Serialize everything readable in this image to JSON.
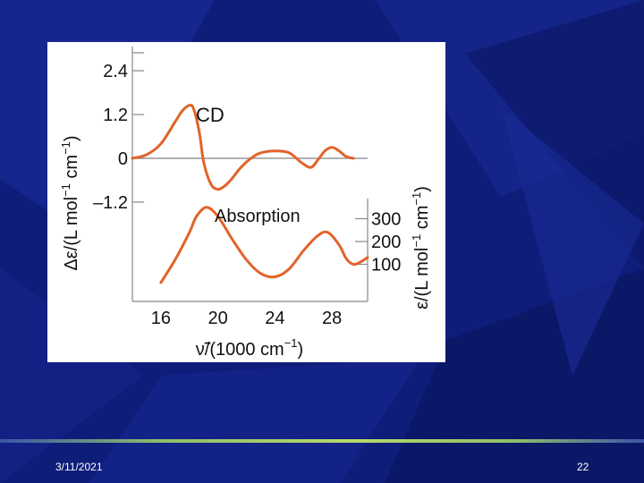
{
  "slide": {
    "date": "3/11/2021",
    "page_number": "22",
    "background_color": "#0f1d7a",
    "accent_line_color": "#b8d96a"
  },
  "chart_data": {
    "type": "line",
    "curve_color": "#e2632a",
    "baseline_color": "#999999",
    "x_tick_labels": [
      "16",
      "20",
      "24",
      "28"
    ],
    "x_ticks": [
      16,
      20,
      24,
      28
    ],
    "xlim": [
      14,
      30.5
    ],
    "xlabel": {
      "prefix": "ν̃/(1000 cm",
      "sup": "−1",
      "suffix": ")"
    },
    "left_axis": {
      "tick_labels": [
        "2.4",
        "1.2",
        "0",
        "–1.2"
      ],
      "ticks": [
        2.4,
        1.2,
        0,
        -1.2
      ],
      "ylabel": {
        "part1": "Δε/(L mol",
        "sup1": "−1",
        "part2": " cm",
        "sup2": "−1",
        "part3": ")"
      }
    },
    "right_axis": {
      "tick_labels": [
        "300",
        "200",
        "100"
      ],
      "ticks": [
        300,
        200,
        100
      ],
      "ylabel": {
        "part1": "ε/(L mol",
        "sup1": "−1",
        "part2": " cm",
        "sup2": "−1",
        "part3": ")"
      }
    },
    "series": [
      {
        "name": "CD",
        "x": [
          14.0,
          15.0,
          16.0,
          17.0,
          17.5,
          18.0,
          18.3,
          18.7,
          19.0,
          19.5,
          20.0,
          20.5,
          21.0,
          21.5,
          22.0,
          22.5,
          23.0,
          24.0,
          25.0,
          25.8,
          26.5,
          27.0,
          27.5,
          28.0,
          28.5,
          29.0,
          29.5
        ],
        "y": [
          0.0,
          0.1,
          0.4,
          1.0,
          1.3,
          1.45,
          1.35,
          0.7,
          -0.1,
          -0.7,
          -0.85,
          -0.75,
          -0.55,
          -0.3,
          -0.1,
          0.05,
          0.15,
          0.2,
          0.15,
          -0.1,
          -0.25,
          -0.05,
          0.2,
          0.3,
          0.2,
          0.05,
          0.0
        ]
      },
      {
        "name": "Absorption",
        "x": [
          16.0,
          17.0,
          18.0,
          18.5,
          19.2,
          20.0,
          21.0,
          22.0,
          23.0,
          24.0,
          25.0,
          26.0,
          27.0,
          27.7,
          28.5,
          29.0,
          29.5,
          30.0,
          30.5
        ],
        "y": [
          20,
          120,
          240,
          310,
          350,
          310,
          210,
          120,
          60,
          45,
          80,
          160,
          225,
          240,
          185,
          125,
          100,
          110,
          130
        ]
      }
    ]
  }
}
